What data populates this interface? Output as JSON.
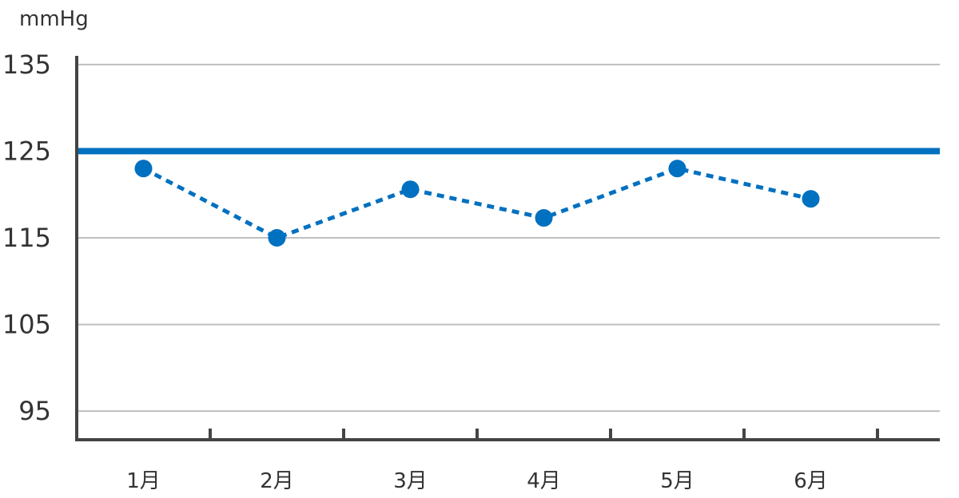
{
  "chart_data": {
    "type": "line",
    "unit_label": "mmHg",
    "categories": [
      "1月",
      "2月",
      "3月",
      "4月",
      "5月",
      "6月"
    ],
    "series": [
      {
        "values": [
          123,
          115,
          120.6,
          117.3,
          123,
          119.5
        ],
        "color": "#0070c0",
        "style": "dashed",
        "markers": true
      }
    ],
    "reference_line": {
      "value": 125,
      "color": "#0070c0"
    },
    "yticks": [
      95,
      105,
      115,
      125,
      135
    ],
    "ylim": [
      91.7,
      136
    ],
    "grid": true,
    "colors": {
      "axis": "#444444",
      "grid": "#bfbfbf",
      "text": "#333333"
    }
  }
}
